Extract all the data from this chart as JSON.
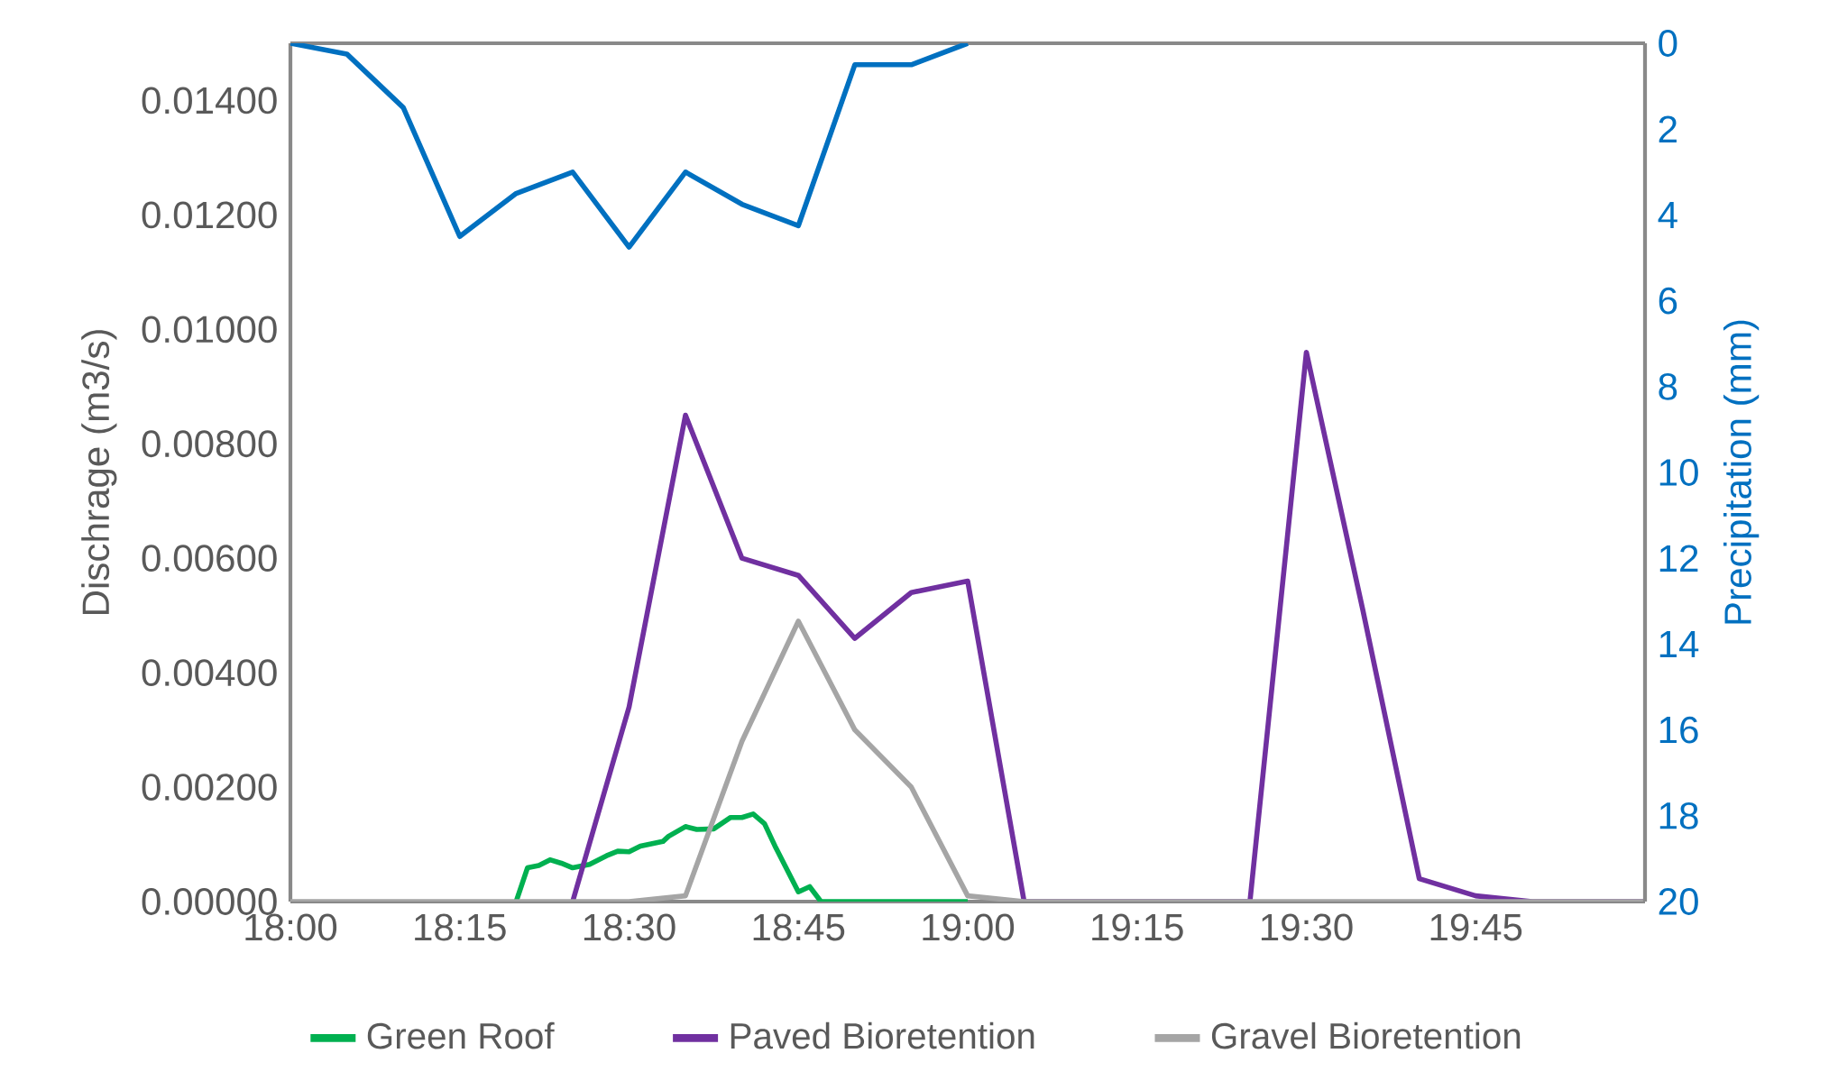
{
  "chart_data": {
    "type": "line",
    "ylabel": "Dischrage (m3/s)",
    "y2label": "Precipitation (mm)",
    "xlim": [
      18,
      20
    ],
    "xticks": [
      {
        "value": 18,
        "label": "18:00"
      },
      {
        "value": 18.25,
        "label": "18:15"
      },
      {
        "value": 18.5,
        "label": "18:30"
      },
      {
        "value": 18.75,
        "label": "18:45"
      },
      {
        "value": 19,
        "label": "19:00"
      },
      {
        "value": 19.25,
        "label": "19:15"
      },
      {
        "value": 19.5,
        "label": "19:30"
      },
      {
        "value": 19.75,
        "label": "19:45"
      }
    ],
    "ylim": [
      0,
      0.015
    ],
    "yticks": [
      {
        "value": 0,
        "label": "0.00000"
      },
      {
        "value": 0.002,
        "label": "0.00200"
      },
      {
        "value": 0.004,
        "label": "0.00400"
      },
      {
        "value": 0.006,
        "label": "0.00600"
      },
      {
        "value": 0.008,
        "label": "0.00800"
      },
      {
        "value": 0.01,
        "label": "0.01000"
      },
      {
        "value": 0.012,
        "label": "0.01200"
      },
      {
        "value": 0.014,
        "label": "0.01400"
      }
    ],
    "y2lim": [
      20,
      0
    ],
    "y2ticks": [
      0,
      2,
      4,
      6,
      8,
      10,
      12,
      14,
      16,
      18,
      20
    ],
    "legend": "bottom",
    "series": [
      {
        "name": "Green Roof",
        "color": "#00b050",
        "x": [
          18.3333,
          18.35,
          18.3667,
          18.3833,
          18.4,
          18.4167,
          18.4417,
          18.4667,
          18.4833,
          18.5,
          18.5167,
          18.55,
          18.5583,
          18.5833,
          18.6,
          18.625,
          18.65,
          18.6667,
          18.6833,
          18.7,
          18.7167,
          18.75,
          18.7667,
          18.7833,
          19
        ],
        "values": [
          0,
          0.00059,
          0.00063,
          0.00073,
          0.00067,
          0.00059,
          0.00065,
          0.0008,
          0.00088,
          0.00087,
          0.00097,
          0.00105,
          0.00114,
          0.00131,
          0.00126,
          0.00127,
          0.00147,
          0.00147,
          0.00153,
          0.00136,
          0.00094,
          0.00017,
          0.00026,
          0,
          0
        ]
      },
      {
        "name": "Paved Bioretention",
        "color": "#7030a0",
        "x": [
          18.4167,
          18.5,
          18.5833,
          18.6667,
          18.75,
          18.8333,
          18.9167,
          19,
          19.0833,
          19.1667,
          19.25,
          19.3333,
          19.4167,
          19.5,
          19.5833,
          19.6667,
          19.75,
          19.8333,
          19.9167,
          20
        ],
        "values": [
          0,
          0.0034,
          0.0085,
          0.006,
          0.0057,
          0.0046,
          0.0054,
          0.0056,
          0,
          0,
          0,
          0,
          0,
          0.0096,
          0.0051,
          0.0004,
          0.0001,
          0,
          0,
          0
        ]
      },
      {
        "name": "Gravel Bioretention",
        "color": "#a5a5a5",
        "x": [
          18,
          18.0833,
          18.1667,
          18.25,
          18.3333,
          18.4167,
          18.5,
          18.5833,
          18.6667,
          18.75,
          18.8333,
          18.9167,
          19,
          19.0833,
          19.1667,
          19.25,
          19.3333,
          19.4167,
          19.5,
          19.5833,
          19.6667,
          19.75,
          19.8333,
          19.9167,
          20
        ],
        "values": [
          0,
          0,
          0,
          0,
          0,
          0,
          0,
          0.0001,
          0.0028,
          0.0049,
          0.003,
          0.002,
          0.0001,
          0,
          0,
          0,
          0,
          0,
          0,
          0,
          0,
          0,
          0,
          0,
          0
        ]
      },
      {
        "axis": "y2",
        "color": "#0070c0",
        "x": [
          18,
          18.0833,
          18.1667,
          18.25,
          18.3333,
          18.4167,
          18.5,
          18.5833,
          18.6667,
          18.75,
          18.8333,
          18.9167,
          19
        ],
        "values": [
          0,
          0.25,
          1.5,
          4.5,
          3.5,
          3,
          4.75,
          3,
          3.75,
          4.25,
          0.5,
          0.5,
          0
        ]
      }
    ]
  }
}
